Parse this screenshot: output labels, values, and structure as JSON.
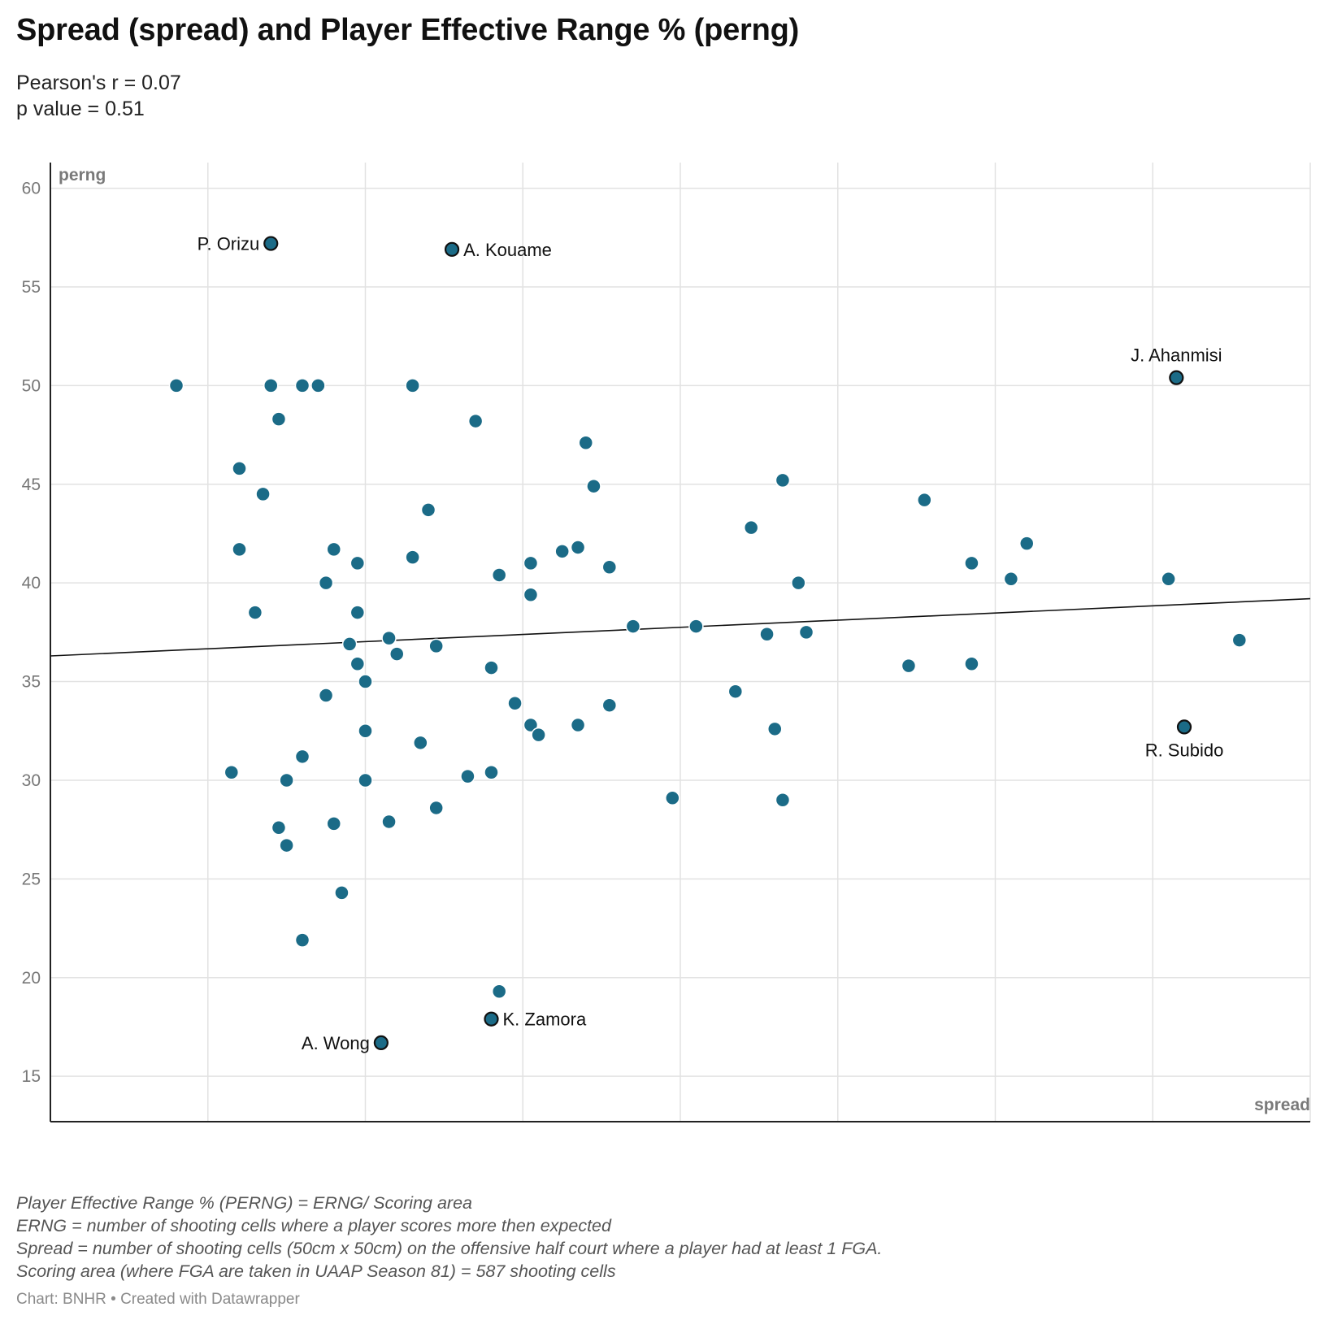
{
  "header": {
    "title": "Spread (spread) and Player Effective Range % (perng)",
    "subtitle_lines": [
      "Pearson's r = 0.07",
      "p value = 0.51"
    ]
  },
  "footer": {
    "notes": [
      "Player Effective Range % (PERNG) = ERNG/ Scoring area",
      "ERNG = number of shooting cells where a player scores more then expected",
      "Spread = number of shooting cells (50cm x 50cm) on the offensive half court where a player had at least 1 FGA.",
      "Scoring area (where FGA are taken in UAAP Season 81) = 587 shooting cells"
    ],
    "credit": "Chart: BNHR • Created with Datawrapper"
  },
  "colors": {
    "point": "#1b6b87",
    "point_stroke": "#ffffff",
    "highlight_point": "#1b6b87",
    "highlight_stroke": "#111111",
    "trendline": "#111111",
    "grid": "#e2e2e2",
    "axis": "#222222"
  },
  "chart_data": {
    "type": "scatter",
    "xlabel": "spread",
    "ylabel": "perng",
    "xlim": [
      0,
      160
    ],
    "ylim": [
      12.7,
      61.3
    ],
    "x_ticks": [
      0,
      20,
      40,
      60,
      80,
      100,
      120,
      140,
      160
    ],
    "y_ticks": [
      15,
      20,
      25,
      30,
      35,
      40,
      45,
      50,
      55,
      60
    ],
    "grid": true,
    "trendline": {
      "x": [
        0,
        160
      ],
      "y": [
        36.3,
        39.2
      ]
    },
    "points": [
      {
        "x": 16,
        "y": 50.0
      },
      {
        "x": 28,
        "y": 50.0
      },
      {
        "x": 32,
        "y": 50.0
      },
      {
        "x": 34,
        "y": 50.0
      },
      {
        "x": 46,
        "y": 50.0
      },
      {
        "x": 29,
        "y": 48.3
      },
      {
        "x": 54,
        "y": 48.2
      },
      {
        "x": 68,
        "y": 47.1
      },
      {
        "x": 24,
        "y": 45.8
      },
      {
        "x": 93,
        "y": 45.2
      },
      {
        "x": 69,
        "y": 44.9
      },
      {
        "x": 27,
        "y": 44.5
      },
      {
        "x": 111,
        "y": 44.2
      },
      {
        "x": 48,
        "y": 43.7
      },
      {
        "x": 89,
        "y": 42.8
      },
      {
        "x": 124,
        "y": 42.0
      },
      {
        "x": 67,
        "y": 41.8
      },
      {
        "x": 24,
        "y": 41.7
      },
      {
        "x": 36,
        "y": 41.7
      },
      {
        "x": 65,
        "y": 41.6
      },
      {
        "x": 46,
        "y": 41.3
      },
      {
        "x": 39,
        "y": 41.0
      },
      {
        "x": 61,
        "y": 41.0
      },
      {
        "x": 117,
        "y": 41.0
      },
      {
        "x": 71,
        "y": 40.8
      },
      {
        "x": 57,
        "y": 40.4
      },
      {
        "x": 122,
        "y": 40.2
      },
      {
        "x": 142,
        "y": 40.2
      },
      {
        "x": 35,
        "y": 40.0
      },
      {
        "x": 95,
        "y": 40.0
      },
      {
        "x": 61,
        "y": 39.4
      },
      {
        "x": 26,
        "y": 38.5
      },
      {
        "x": 39,
        "y": 38.5
      },
      {
        "x": 74,
        "y": 37.8
      },
      {
        "x": 82,
        "y": 37.8
      },
      {
        "x": 96,
        "y": 37.5
      },
      {
        "x": 91,
        "y": 37.4
      },
      {
        "x": 43,
        "y": 37.2
      },
      {
        "x": 151,
        "y": 37.1
      },
      {
        "x": 38,
        "y": 36.9
      },
      {
        "x": 49,
        "y": 36.8
      },
      {
        "x": 44,
        "y": 36.4
      },
      {
        "x": 39,
        "y": 35.9
      },
      {
        "x": 117,
        "y": 35.9
      },
      {
        "x": 109,
        "y": 35.8
      },
      {
        "x": 56,
        "y": 35.7
      },
      {
        "x": 40,
        "y": 35.0
      },
      {
        "x": 87,
        "y": 34.5
      },
      {
        "x": 35,
        "y": 34.3
      },
      {
        "x": 59,
        "y": 33.9
      },
      {
        "x": 71,
        "y": 33.8
      },
      {
        "x": 61,
        "y": 32.8
      },
      {
        "x": 67,
        "y": 32.8
      },
      {
        "x": 92,
        "y": 32.6
      },
      {
        "x": 40,
        "y": 32.5
      },
      {
        "x": 62,
        "y": 32.3
      },
      {
        "x": 47,
        "y": 31.9
      },
      {
        "x": 32,
        "y": 31.2
      },
      {
        "x": 23,
        "y": 30.4
      },
      {
        "x": 56,
        "y": 30.4
      },
      {
        "x": 53,
        "y": 30.2
      },
      {
        "x": 30,
        "y": 30.0
      },
      {
        "x": 40,
        "y": 30.0
      },
      {
        "x": 79,
        "y": 29.1
      },
      {
        "x": 93,
        "y": 29.0
      },
      {
        "x": 49,
        "y": 28.6
      },
      {
        "x": 43,
        "y": 27.9
      },
      {
        "x": 36,
        "y": 27.8
      },
      {
        "x": 29,
        "y": 27.6
      },
      {
        "x": 30,
        "y": 26.7
      },
      {
        "x": 37,
        "y": 24.3
      },
      {
        "x": 32,
        "y": 21.9
      },
      {
        "x": 57,
        "y": 19.3
      }
    ],
    "highlighted": [
      {
        "x": 28,
        "y": 57.2,
        "label": "P. Orizu",
        "anchor": "left"
      },
      {
        "x": 51,
        "y": 56.9,
        "label": "A. Kouame",
        "anchor": "right"
      },
      {
        "x": 143,
        "y": 50.4,
        "label": "J. Ahanmisi",
        "anchor": "top"
      },
      {
        "x": 144,
        "y": 32.7,
        "label": "R. Subido",
        "anchor": "bottom"
      },
      {
        "x": 56,
        "y": 17.9,
        "label": "K. Zamora",
        "anchor": "right"
      },
      {
        "x": 42,
        "y": 16.7,
        "label": "A. Wong",
        "anchor": "left"
      }
    ]
  }
}
